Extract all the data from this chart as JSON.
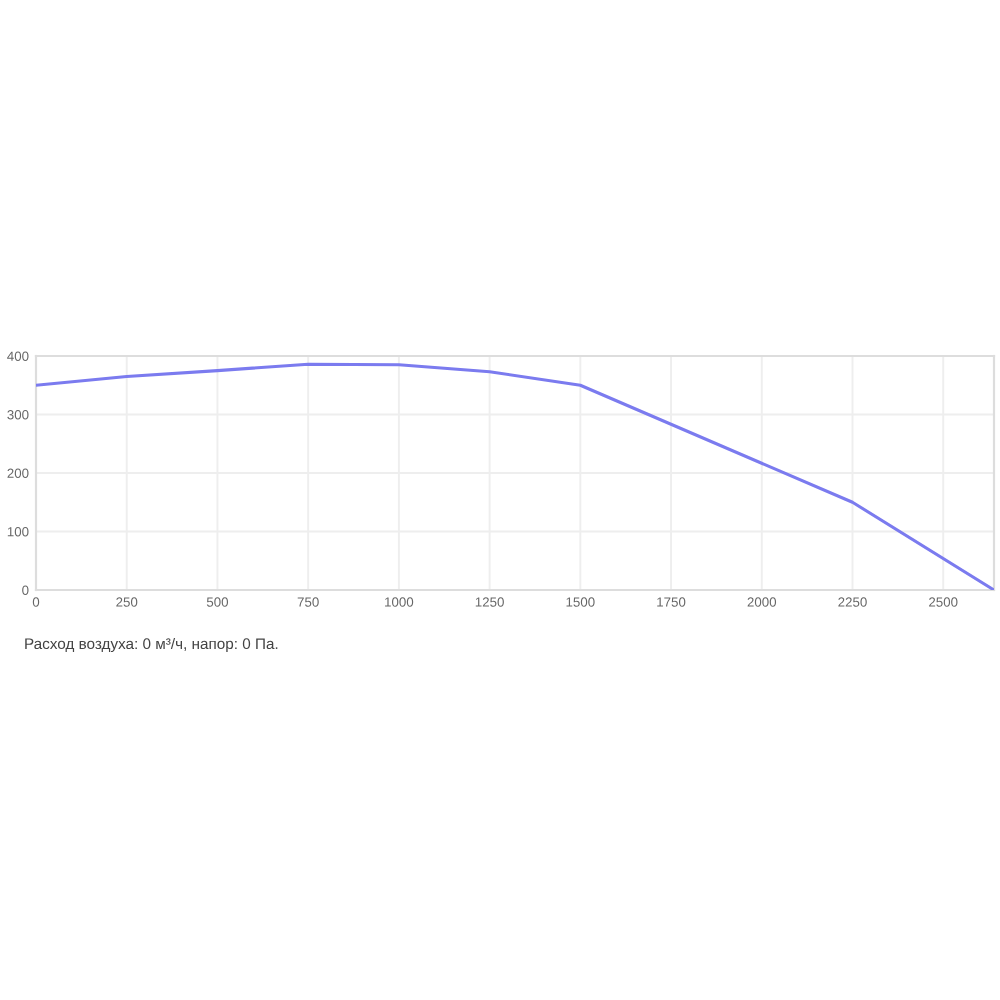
{
  "chart_data": {
    "type": "line",
    "x": [
      0,
      250,
      500,
      750,
      1000,
      1250,
      1500,
      2250,
      2640
    ],
    "series": [
      {
        "color": "#7b7bef",
        "values": [
          350,
          365,
          375,
          386,
          385,
          373,
          350,
          150,
          0
        ]
      }
    ],
    "xlim": [
      0,
      2640
    ],
    "xticks": [
      0,
      250,
      500,
      750,
      1000,
      1250,
      1500,
      1750,
      2000,
      2250,
      2500
    ],
    "ylim": [
      0,
      400
    ],
    "yticks": [
      0,
      100,
      200,
      300,
      400
    ],
    "grid": true,
    "marker": "none",
    "line_style": "solid",
    "annotations": [
      "Расход воздуха: 0 м³/ч, напор: 0 Па."
    ]
  }
}
